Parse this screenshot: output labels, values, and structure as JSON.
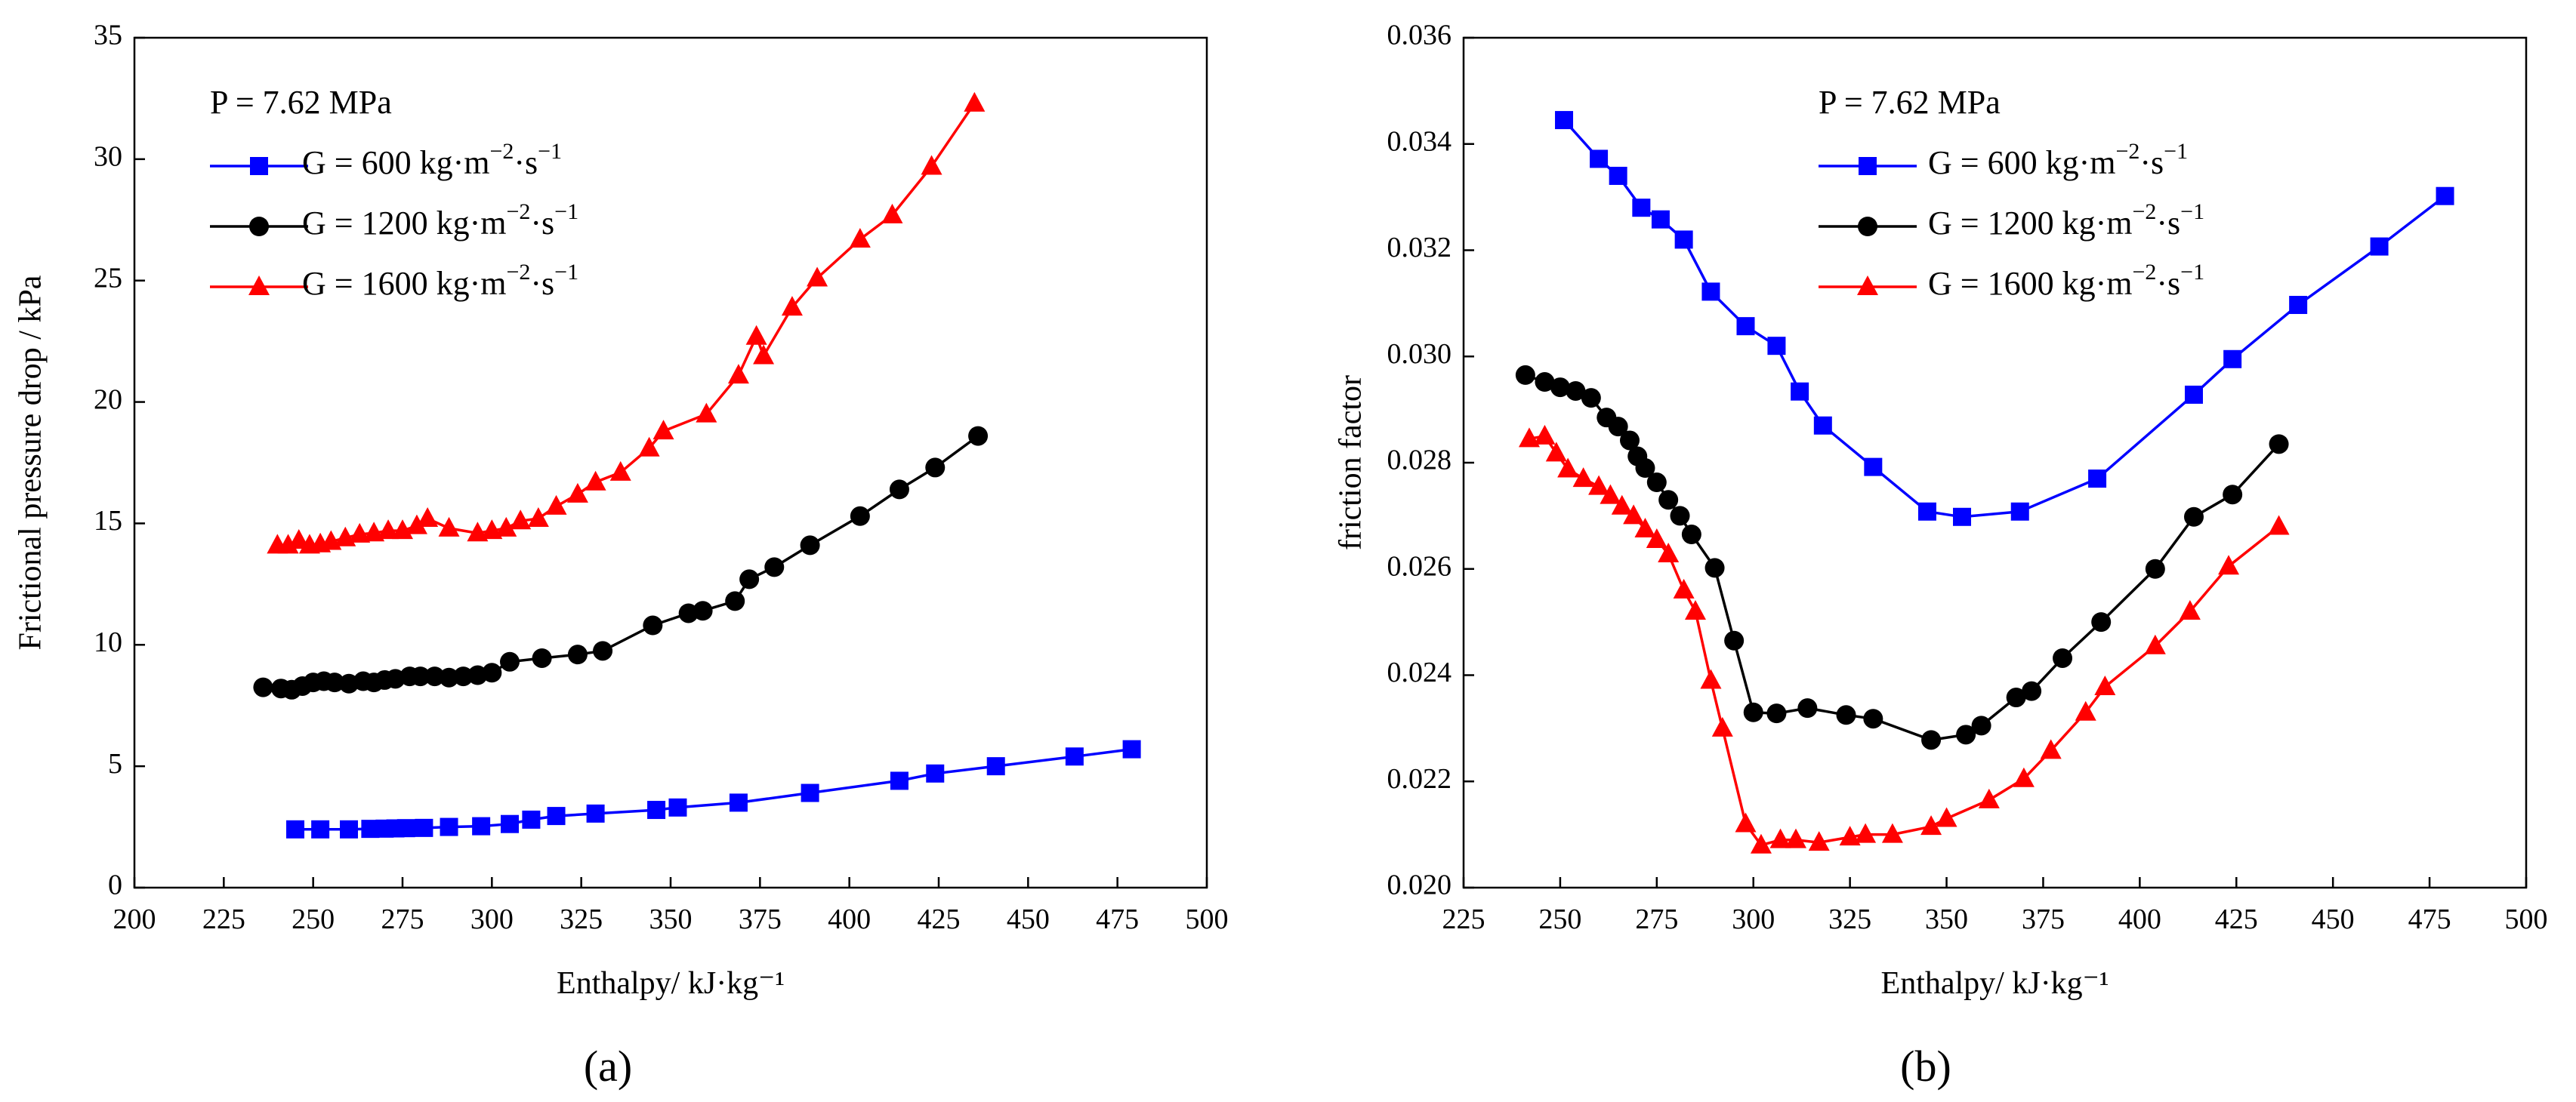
{
  "panel_labels": {
    "a": "(a)",
    "b": "(b)"
  },
  "chart_data": [
    {
      "id": "a",
      "type": "line",
      "xlabel": "Enthalpy/ kJ·kg⁻¹",
      "ylabel": "Frictional pressure drop / kPa",
      "xlim": [
        200,
        500
      ],
      "ylim": [
        0,
        35
      ],
      "xticks": [
        200,
        225,
        250,
        275,
        300,
        325,
        350,
        375,
        400,
        425,
        450,
        475,
        500
      ],
      "yticks": [
        0,
        5,
        10,
        15,
        20,
        25,
        30,
        35
      ],
      "ytick_labels": [
        "0",
        "5",
        "10",
        "15",
        "20",
        "25",
        "30",
        "35"
      ],
      "legend_header": "P = 7.62 MPa",
      "legend_position": "top-left",
      "series": [
        {
          "name_prefix": "G =  600 kg·m",
          "sup1": "−2",
          "mid": "·s",
          "sup2": "−1",
          "color": "#0000ff",
          "marker": "square",
          "x": [
            245,
            252,
            260,
            266,
            270,
            273,
            276,
            281,
            288,
            297,
            305,
            311,
            318,
            329,
            346,
            352,
            369,
            389,
            414,
            424,
            441,
            463,
            479
          ],
          "y": [
            2.4,
            2.4,
            2.4,
            2.42,
            2.43,
            2.44,
            2.45,
            2.46,
            2.5,
            2.53,
            2.62,
            2.8,
            2.95,
            3.05,
            3.2,
            3.3,
            3.5,
            3.9,
            4.4,
            4.7,
            5.0,
            5.4,
            5.7
          ]
        },
        {
          "name_prefix": "G = 1200 kg·m",
          "sup1": "−2",
          "mid": "·s",
          "sup2": "−1",
          "color": "#000000",
          "marker": "circle",
          "x": [
            236,
            241,
            244,
            247,
            250,
            253,
            256,
            260,
            264,
            267,
            270,
            273,
            277,
            280,
            284,
            288,
            292,
            296,
            300,
            305,
            314,
            324,
            331,
            345,
            355,
            359,
            368,
            372,
            379,
            389,
            403,
            414,
            424,
            436
          ],
          "y": [
            8.25,
            8.2,
            8.15,
            8.3,
            8.45,
            8.5,
            8.45,
            8.4,
            8.5,
            8.45,
            8.55,
            8.6,
            8.7,
            8.7,
            8.7,
            8.65,
            8.7,
            8.75,
            8.85,
            9.3,
            9.45,
            9.6,
            9.75,
            10.8,
            11.3,
            11.4,
            11.8,
            12.7,
            13.2,
            14.1,
            15.3,
            16.4,
            17.3,
            18.6
          ]
        },
        {
          "name_prefix": "G = 1600 kg·m",
          "sup1": "−2",
          "mid": "·s",
          "sup2": "−1",
          "color": "#ff0000",
          "marker": "triangle",
          "x": [
            240,
            243,
            246,
            249,
            252,
            255,
            259,
            263,
            267,
            271,
            275,
            279,
            282,
            288,
            296,
            300,
            304,
            308,
            313,
            318,
            324,
            329,
            336,
            344,
            348,
            360,
            369,
            374,
            376,
            384,
            391,
            403,
            412,
            423,
            435
          ],
          "y": [
            14.1,
            14.1,
            14.3,
            14.1,
            14.15,
            14.25,
            14.4,
            14.55,
            14.6,
            14.7,
            14.7,
            14.9,
            15.2,
            14.8,
            14.6,
            14.7,
            14.8,
            15.1,
            15.2,
            15.7,
            16.2,
            16.7,
            17.1,
            18.1,
            18.8,
            19.5,
            21.1,
            22.7,
            21.9,
            23.9,
            25.1,
            26.7,
            27.7,
            29.7,
            32.3
          ]
        }
      ]
    },
    {
      "id": "b",
      "type": "line",
      "xlabel": "Enthalpy/ kJ·kg⁻¹",
      "ylabel": "friction factor",
      "xlim": [
        225,
        500
      ],
      "ylim": [
        0.02,
        0.036
      ],
      "xticks": [
        225,
        250,
        275,
        300,
        325,
        350,
        375,
        400,
        425,
        450,
        475,
        500
      ],
      "yticks": [
        0.02,
        0.022,
        0.024,
        0.026,
        0.028,
        0.03,
        0.032,
        0.034,
        0.036
      ],
      "ytick_labels": [
        "0.020",
        "0.022",
        "0.024",
        "0.026",
        "0.028",
        "0.030",
        "0.032",
        "0.034",
        "0.036"
      ],
      "legend_header": "P = 7.62 MPa",
      "legend_position": "top-center",
      "series": [
        {
          "name_prefix": "G =  600 kg·m",
          "sup1": "−2",
          "mid": "·s",
          "sup2": "−1",
          "color": "#0000ff",
          "marker": "square",
          "x": [
            251,
            260,
            265,
            271,
            276,
            282,
            289,
            298,
            306,
            312,
            318,
            331,
            345,
            354,
            369,
            389,
            414,
            424,
            441,
            462,
            479
          ],
          "y": [
            0.03445,
            0.03372,
            0.0334,
            0.0328,
            0.03258,
            0.0322,
            0.03122,
            0.03057,
            0.0302,
            0.02934,
            0.0287,
            0.02792,
            0.02708,
            0.02698,
            0.02708,
            0.0277,
            0.02928,
            0.02995,
            0.03097,
            0.03207,
            0.03302
          ]
        },
        {
          "name_prefix": "G = 1200 kg·m",
          "sup1": "−2",
          "mid": "·s",
          "sup2": "−1",
          "color": "#000000",
          "marker": "circle",
          "x": [
            241,
            246,
            250,
            254,
            258,
            262,
            265,
            268,
            270,
            272,
            275,
            278,
            281,
            284,
            290,
            295,
            300,
            306,
            314,
            324,
            331,
            346,
            355,
            359,
            368,
            372,
            380,
            390,
            404,
            414,
            424,
            436
          ],
          "y": [
            0.02965,
            0.02952,
            0.02942,
            0.02935,
            0.02922,
            0.02885,
            0.02868,
            0.02842,
            0.02812,
            0.0279,
            0.02763,
            0.0273,
            0.027,
            0.02665,
            0.02602,
            0.02465,
            0.0233,
            0.02328,
            0.02338,
            0.02325,
            0.02318,
            0.02278,
            0.02288,
            0.02305,
            0.02358,
            0.0237,
            0.02432,
            0.025,
            0.026,
            0.02698,
            0.0274,
            0.02835
          ]
        },
        {
          "name_prefix": "G = 1600 kg·m",
          "sup1": "−2",
          "mid": "·s",
          "sup2": "−1",
          "color": "#ff0000",
          "marker": "triangle",
          "x": [
            242,
            246,
            249,
            252,
            256,
            260,
            263,
            266,
            269,
            272,
            275,
            278,
            282,
            285,
            289,
            292,
            298,
            302,
            307,
            311,
            317,
            325,
            329,
            336,
            346,
            350,
            361,
            370,
            377,
            386,
            391,
            404,
            413,
            423,
            436
          ],
          "y": [
            0.02845,
            0.0285,
            0.02818,
            0.02788,
            0.0277,
            0.02755,
            0.02738,
            0.02718,
            0.027,
            0.02675,
            0.02655,
            0.02628,
            0.0256,
            0.0252,
            0.0239,
            0.023,
            0.0212,
            0.0208,
            0.0209,
            0.0209,
            0.02085,
            0.02095,
            0.021,
            0.021,
            0.02115,
            0.0213,
            0.02165,
            0.02205,
            0.02258,
            0.0233,
            0.02378,
            0.02455,
            0.0252,
            0.02605,
            0.0268
          ]
        }
      ]
    }
  ]
}
